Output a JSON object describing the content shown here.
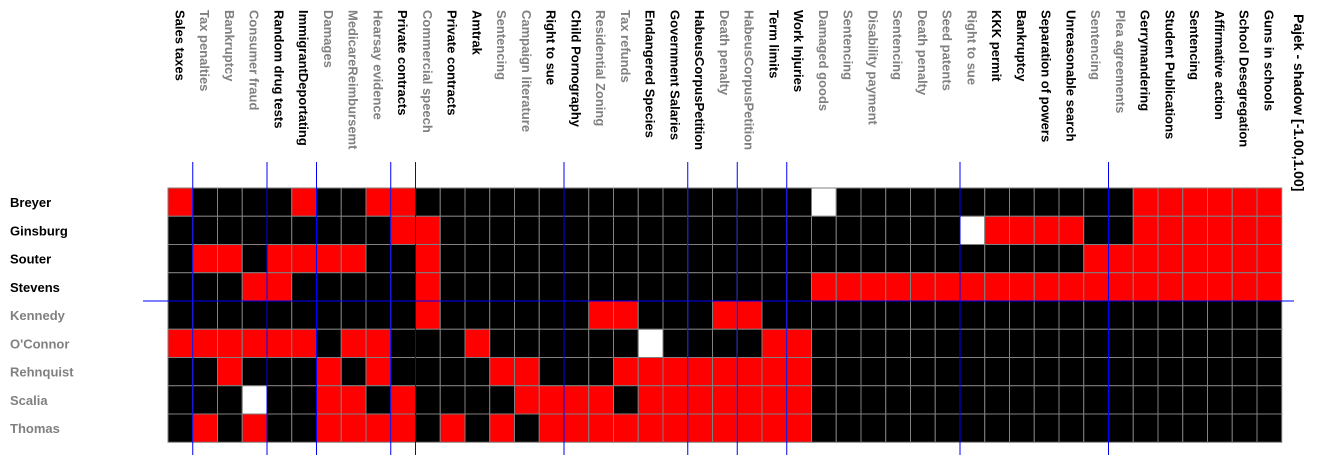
{
  "chart_data": {
    "type": "heatmap",
    "title": "Pajek - shadow [-1.00,1.00]",
    "columns": [
      {
        "label": "Sales taxes",
        "color": "#000000"
      },
      {
        "label": "Tax penalties",
        "color": "#808080"
      },
      {
        "label": "Bankruptcy",
        "color": "#808080"
      },
      {
        "label": "Consumer fraud",
        "color": "#808080"
      },
      {
        "label": "Random drug tests",
        "color": "#000000"
      },
      {
        "label": "ImmigrantDeportating",
        "color": "#000000"
      },
      {
        "label": "Damages",
        "color": "#808080"
      },
      {
        "label": "MedicareReimbursemt",
        "color": "#808080"
      },
      {
        "label": "Hearsay evidence",
        "color": "#808080"
      },
      {
        "label": "Private contracts",
        "color": "#000000"
      },
      {
        "label": "Commercial speech",
        "color": "#808080"
      },
      {
        "label": "Private contracts",
        "color": "#000000"
      },
      {
        "label": "Amtrak",
        "color": "#000000"
      },
      {
        "label": "Sentencing",
        "color": "#808080"
      },
      {
        "label": "Campaign literature",
        "color": "#808080"
      },
      {
        "label": "Right to sue",
        "color": "#000000"
      },
      {
        "label": "Child Pornography",
        "color": "#000000"
      },
      {
        "label": "Residential Zoning",
        "color": "#808080"
      },
      {
        "label": "Tax refunds",
        "color": "#808080"
      },
      {
        "label": "Endangered Species",
        "color": "#000000"
      },
      {
        "label": "Government Salaries",
        "color": "#000000"
      },
      {
        "label": "HabeusCorpusPetition",
        "color": "#000000"
      },
      {
        "label": "Death penalty",
        "color": "#808080"
      },
      {
        "label": "HabeusCorpusPetition",
        "color": "#808080"
      },
      {
        "label": "Term limits",
        "color": "#000000"
      },
      {
        "label": "Work Injuries",
        "color": "#000000"
      },
      {
        "label": "Damaged goods",
        "color": "#808080"
      },
      {
        "label": "Sentencing",
        "color": "#808080"
      },
      {
        "label": "Disability payment",
        "color": "#808080"
      },
      {
        "label": "Sentencing",
        "color": "#808080"
      },
      {
        "label": "Death penalty",
        "color": "#808080"
      },
      {
        "label": "Seed patents",
        "color": "#808080"
      },
      {
        "label": "Right to sue",
        "color": "#808080"
      },
      {
        "label": "KKK permit",
        "color": "#000000"
      },
      {
        "label": "Bankruptcy",
        "color": "#000000"
      },
      {
        "label": "Separation of powers",
        "color": "#000000"
      },
      {
        "label": "Unreasonable search",
        "color": "#000000"
      },
      {
        "label": "Sentencing",
        "color": "#808080"
      },
      {
        "label": "Plea agreements",
        "color": "#808080"
      },
      {
        "label": "Gerrymandering",
        "color": "#000000"
      },
      {
        "label": "Student Publications",
        "color": "#000000"
      },
      {
        "label": "Sentencing",
        "color": "#000000"
      },
      {
        "label": "Affirmative action",
        "color": "#000000"
      },
      {
        "label": "School Desegregation",
        "color": "#000000"
      },
      {
        "label": "Guns in schools",
        "color": "#000000"
      }
    ],
    "rows": [
      {
        "label": "Breyer",
        "color": "#000000"
      },
      {
        "label": "Ginsburg",
        "color": "#000000"
      },
      {
        "label": "Souter",
        "color": "#000000"
      },
      {
        "label": "Stevens",
        "color": "#000000"
      },
      {
        "label": "Kennedy",
        "color": "#808080"
      },
      {
        "label": "O'Connor",
        "color": "#808080"
      },
      {
        "label": "Rehnquist",
        "color": "#808080"
      },
      {
        "label": "Scalia",
        "color": "#808080"
      },
      {
        "label": "Thomas",
        "color": "#808080"
      }
    ],
    "values": [
      [
        1,
        0,
        0,
        0,
        0,
        1,
        0,
        0,
        1,
        1,
        0,
        0,
        0,
        0,
        0,
        0,
        0,
        0,
        0,
        0,
        0,
        0,
        0,
        0,
        0,
        0,
        -1,
        0,
        0,
        0,
        0,
        0,
        0,
        0,
        0,
        0,
        0,
        0,
        0,
        1,
        1,
        1,
        1,
        1,
        1
      ],
      [
        0,
        0,
        0,
        0,
        0,
        0,
        0,
        0,
        0,
        1,
        1,
        0,
        0,
        0,
        0,
        0,
        0,
        0,
        0,
        0,
        0,
        0,
        0,
        0,
        0,
        0,
        0,
        0,
        0,
        0,
        0,
        0,
        -1,
        1,
        1,
        1,
        1,
        0,
        0,
        1,
        1,
        1,
        1,
        1,
        1
      ],
      [
        0,
        1,
        1,
        0,
        1,
        1,
        1,
        1,
        0,
        0,
        1,
        0,
        0,
        0,
        0,
        0,
        0,
        0,
        0,
        0,
        0,
        0,
        0,
        0,
        0,
        0,
        0,
        0,
        0,
        0,
        0,
        0,
        0,
        0,
        0,
        0,
        0,
        1,
        1,
        1,
        1,
        1,
        1,
        1,
        1
      ],
      [
        0,
        0,
        0,
        1,
        1,
        0,
        0,
        0,
        0,
        0,
        1,
        0,
        0,
        0,
        0,
        0,
        0,
        0,
        0,
        0,
        0,
        0,
        0,
        0,
        0,
        0,
        1,
        1,
        1,
        1,
        1,
        1,
        1,
        1,
        1,
        1,
        1,
        1,
        1,
        1,
        1,
        1,
        1,
        1,
        1
      ],
      [
        0,
        0,
        0,
        0,
        0,
        0,
        0,
        0,
        0,
        0,
        1,
        0,
        0,
        0,
        0,
        0,
        0,
        1,
        1,
        0,
        0,
        0,
        1,
        1,
        0,
        0,
        0,
        0,
        0,
        0,
        0,
        0,
        0,
        0,
        0,
        0,
        0,
        0,
        0,
        0,
        0,
        0,
        0,
        0,
        0
      ],
      [
        1,
        1,
        1,
        1,
        1,
        1,
        0,
        1,
        1,
        0,
        0,
        0,
        1,
        0,
        0,
        0,
        0,
        0,
        0,
        -1,
        0,
        0,
        0,
        0,
        1,
        1,
        0,
        0,
        0,
        0,
        0,
        0,
        0,
        0,
        0,
        0,
        0,
        0,
        0,
        0,
        0,
        0,
        0,
        0,
        0
      ],
      [
        0,
        0,
        1,
        0,
        0,
        0,
        1,
        0,
        1,
        0,
        0,
        0,
        0,
        1,
        1,
        0,
        0,
        0,
        1,
        1,
        1,
        1,
        1,
        1,
        1,
        1,
        0,
        0,
        0,
        0,
        0,
        0,
        0,
        0,
        0,
        0,
        0,
        0,
        0,
        0,
        0,
        0,
        0,
        0,
        0
      ],
      [
        0,
        0,
        0,
        -1,
        0,
        0,
        1,
        1,
        0,
        1,
        0,
        0,
        0,
        0,
        1,
        1,
        1,
        1,
        0,
        1,
        1,
        1,
        1,
        1,
        1,
        1,
        0,
        0,
        0,
        0,
        0,
        0,
        0,
        0,
        0,
        0,
        0,
        0,
        0,
        0,
        0,
        0,
        0,
        0,
        0
      ],
      [
        0,
        1,
        0,
        1,
        0,
        0,
        1,
        1,
        1,
        1,
        0,
        1,
        0,
        1,
        0,
        1,
        1,
        1,
        1,
        1,
        1,
        1,
        1,
        1,
        1,
        1,
        0,
        0,
        0,
        0,
        0,
        0,
        0,
        0,
        0,
        0,
        0,
        0,
        0,
        0,
        0,
        0,
        0,
        0,
        0
      ]
    ],
    "value_colors": {
      "1": "#ff0000",
      "0": "#000000",
      "-1": "#ffffff"
    },
    "grid_color": "#808080",
    "partition_line_color": "#0000ff",
    "column_partitions_after": [
      1,
      4,
      6,
      9,
      10,
      16,
      21,
      23,
      25,
      32,
      38
    ],
    "row_partitions_after": [
      4
    ],
    "legend": "none"
  }
}
